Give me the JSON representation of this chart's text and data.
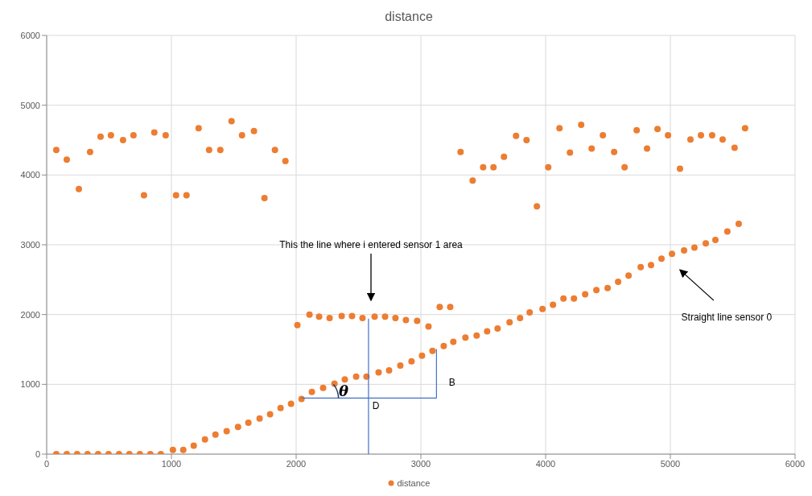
{
  "chart_data": {
    "type": "scatter",
    "title": "distance",
    "xlim": [
      0,
      6000
    ],
    "ylim": [
      0,
      6000
    ],
    "xticks": [
      0,
      1000,
      2000,
      3000,
      4000,
      5000,
      6000
    ],
    "yticks": [
      0,
      1000,
      2000,
      3000,
      4000,
      5000,
      6000
    ],
    "grid": true,
    "legend": "bottom",
    "marker": "circle",
    "series": [
      {
        "name": "distance",
        "color": "#ed7d31",
        "x": [
          77,
          161,
          258,
          348,
          432,
          515,
          612,
          696,
          780,
          863,
          954,
          1037,
          1121,
          1218,
          1302,
          1392,
          1482,
          1566,
          1662,
          1746,
          1830,
          1914,
          77,
          161,
          244,
          328,
          412,
          496,
          580,
          663,
          747,
          831,
          915,
          1012,
          1095,
          1179,
          1269,
          1353,
          1443,
          1534,
          1617,
          1707,
          1791,
          1875,
          1959,
          2043,
          2126,
          2216,
          2307,
          2390,
          2481,
          2564,
          2661,
          2745,
          2835,
          2925,
          3009,
          3093,
          3183,
          3260,
          3357,
          3447,
          3531,
          3615,
          3711,
          3795,
          3872,
          3975,
          4059,
          4143,
          4227,
          4317,
          4407,
          4497,
          4581,
          4665,
          4762,
          4845,
          4929,
          5013,
          5110,
          5193,
          5284,
          5361,
          5457,
          5548,
          3318,
          3415,
          3499,
          3582,
          3666,
          3763,
          3847,
          3930,
          4021,
          4111,
          4195,
          4285,
          4369,
          4459,
          4549,
          4633,
          4730,
          4813,
          4897,
          4981,
          5077,
          5161,
          5245,
          5335,
          5419,
          5515,
          5599,
          2010,
          2107,
          2184,
          2268,
          2365,
          2448,
          2532,
          2629,
          2713,
          2796,
          2880,
          2970,
          3061,
          3151,
          3235
        ],
        "values": [
          4360,
          4220,
          3800,
          4330,
          4550,
          4570,
          4500,
          4570,
          3710,
          4610,
          4570,
          3710,
          3710,
          4670,
          4360,
          4360,
          4770,
          4570,
          4630,
          3670,
          4360,
          4200,
          0,
          0,
          0,
          0,
          0,
          0,
          0,
          0,
          0,
          0,
          0,
          60,
          60,
          120,
          210,
          280,
          330,
          390,
          450,
          510,
          570,
          660,
          720,
          790,
          890,
          950,
          1010,
          1070,
          1110,
          1110,
          1170,
          1200,
          1270,
          1330,
          1410,
          1480,
          1550,
          1610,
          1670,
          1700,
          1760,
          1800,
          1890,
          1950,
          2030,
          2080,
          2140,
          2230,
          2230,
          2290,
          2350,
          2380,
          2470,
          2560,
          2680,
          2710,
          2800,
          2870,
          2920,
          2960,
          3020,
          3070,
          3190,
          3300,
          4330,
          3920,
          4110,
          4110,
          4260,
          4560,
          4500,
          3550,
          4110,
          4670,
          4320,
          4720,
          4380,
          4570,
          4330,
          4110,
          4640,
          4380,
          4660,
          4570,
          4090,
          4510,
          4570,
          4570,
          4510,
          4390,
          4670,
          1850,
          2000,
          1970,
          1950,
          1980,
          1980,
          1950,
          1970,
          1970,
          1950,
          1920,
          1910,
          1830,
          2110,
          2110
        ]
      }
    ],
    "annotations": [
      "This the line where i entered sensor 1 area",
      "Straight line sensor 0",
      "B",
      "D",
      "θ"
    ]
  }
}
